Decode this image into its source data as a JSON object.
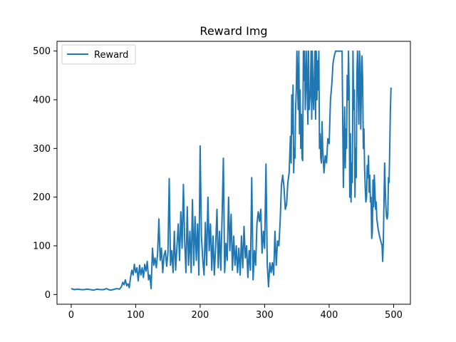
{
  "chart_data": {
    "type": "line",
    "title": "Reward Img",
    "xlabel": "",
    "ylabel": "",
    "xlim": [
      -22,
      526
    ],
    "ylim": [
      -20,
      520
    ],
    "xticks": [
      0,
      100,
      200,
      300,
      400,
      500
    ],
    "yticks": [
      0,
      100,
      200,
      300,
      400,
      500
    ],
    "grid": false,
    "legend": "upper-left",
    "colors": {
      "series": "#1f77b4"
    },
    "series": [
      {
        "name": "Reward",
        "points": [
          [
            0,
            12
          ],
          [
            5,
            10
          ],
          [
            10,
            11
          ],
          [
            15,
            10
          ],
          [
            20,
            10
          ],
          [
            25,
            11
          ],
          [
            30,
            10
          ],
          [
            35,
            9
          ],
          [
            40,
            11
          ],
          [
            45,
            10
          ],
          [
            50,
            10
          ],
          [
            55,
            12
          ],
          [
            60,
            9
          ],
          [
            65,
            10
          ],
          [
            70,
            12
          ],
          [
            75,
            11
          ],
          [
            78,
            16
          ],
          [
            80,
            25
          ],
          [
            82,
            20
          ],
          [
            84,
            30
          ],
          [
            86,
            18
          ],
          [
            88,
            22
          ],
          [
            90,
            14
          ],
          [
            92,
            35
          ],
          [
            94,
            50
          ],
          [
            96,
            40
          ],
          [
            98,
            62
          ],
          [
            100,
            45
          ],
          [
            102,
            55
          ],
          [
            104,
            28
          ],
          [
            106,
            60
          ],
          [
            108,
            40
          ],
          [
            110,
            55
          ],
          [
            112,
            35
          ],
          [
            114,
            62
          ],
          [
            116,
            48
          ],
          [
            118,
            68
          ],
          [
            120,
            30
          ],
          [
            122,
            40
          ],
          [
            124,
            12
          ],
          [
            126,
            95
          ],
          [
            128,
            60
          ],
          [
            130,
            75
          ],
          [
            132,
            55
          ],
          [
            134,
            85
          ],
          [
            136,
            155
          ],
          [
            138,
            70
          ],
          [
            140,
            95
          ],
          [
            142,
            45
          ],
          [
            144,
            80
          ],
          [
            146,
            90
          ],
          [
            148,
            58
          ],
          [
            150,
            85
          ],
          [
            152,
            238
          ],
          [
            154,
            60
          ],
          [
            156,
            90
          ],
          [
            158,
            45
          ],
          [
            160,
            130
          ],
          [
            162,
            50
          ],
          [
            164,
            100
          ],
          [
            166,
            145
          ],
          [
            168,
            70
          ],
          [
            170,
            170
          ],
          [
            172,
            95
          ],
          [
            174,
            226
          ],
          [
            176,
            110
          ],
          [
            178,
            45
          ],
          [
            180,
            180
          ],
          [
            182,
            60
          ],
          [
            184,
            130
          ],
          [
            186,
            45
          ],
          [
            188,
            195
          ],
          [
            190,
            60
          ],
          [
            192,
            160
          ],
          [
            194,
            70
          ],
          [
            196,
            145
          ],
          [
            198,
            40
          ],
          [
            200,
            305
          ],
          [
            202,
            120
          ],
          [
            204,
            70
          ],
          [
            206,
            40
          ],
          [
            208,
            148
          ],
          [
            210,
            60
          ],
          [
            212,
            200
          ],
          [
            214,
            90
          ],
          [
            216,
            145
          ],
          [
            218,
            50
          ],
          [
            220,
            120
          ],
          [
            222,
            40
          ],
          [
            224,
            100
          ],
          [
            226,
            175
          ],
          [
            228,
            55
          ],
          [
            230,
            130
          ],
          [
            232,
            50
          ],
          [
            234,
            160
          ],
          [
            236,
            280
          ],
          [
            238,
            45
          ],
          [
            240,
            105
          ],
          [
            242,
            70
          ],
          [
            244,
            200
          ],
          [
            246,
            90
          ],
          [
            248,
            165
          ],
          [
            250,
            50
          ],
          [
            252,
            120
          ],
          [
            254,
            60
          ],
          [
            256,
            100
          ],
          [
            258,
            45
          ],
          [
            260,
            95
          ],
          [
            262,
            40
          ],
          [
            264,
            120
          ],
          [
            266,
            55
          ],
          [
            268,
            140
          ],
          [
            270,
            75
          ],
          [
            272,
            100
          ],
          [
            274,
            35
          ],
          [
            276,
            90
          ],
          [
            278,
            50
          ],
          [
            280,
            240
          ],
          [
            282,
            30
          ],
          [
            284,
            90
          ],
          [
            286,
            60
          ],
          [
            288,
            145
          ],
          [
            290,
            170
          ],
          [
            292,
            150
          ],
          [
            294,
            175
          ],
          [
            296,
            85
          ],
          [
            298,
            130
          ],
          [
            300,
            95
          ],
          [
            302,
            268
          ],
          [
            304,
            60
          ],
          [
            306,
            16
          ],
          [
            308,
            65
          ],
          [
            310,
            45
          ],
          [
            312,
            65
          ],
          [
            314,
            40
          ],
          [
            316,
            130
          ],
          [
            318,
            60
          ],
          [
            320,
            110
          ],
          [
            322,
            100
          ],
          [
            324,
            150
          ],
          [
            326,
            225
          ],
          [
            328,
            245
          ],
          [
            330,
            220
          ],
          [
            332,
            175
          ],
          [
            334,
            185
          ],
          [
            336,
            230
          ],
          [
            338,
            250
          ],
          [
            340,
            325
          ],
          [
            341,
            270
          ],
          [
            342,
            410
          ],
          [
            343,
            330
          ],
          [
            344,
            430
          ],
          [
            345,
            250
          ],
          [
            346,
            300
          ],
          [
            347,
            280
          ],
          [
            348,
            380
          ],
          [
            349,
            420
          ],
          [
            350,
            500
          ],
          [
            351,
            440
          ],
          [
            352,
            380
          ],
          [
            353,
            500
          ],
          [
            354,
            330
          ],
          [
            355,
            420
          ],
          [
            356,
            300
          ],
          [
            357,
            370
          ],
          [
            358,
            280
          ],
          [
            359,
            275
          ],
          [
            360,
            500
          ],
          [
            361,
            440
          ],
          [
            362,
            500
          ],
          [
            363,
            380
          ],
          [
            364,
            440
          ],
          [
            365,
            500
          ],
          [
            366,
            420
          ],
          [
            367,
            350
          ],
          [
            368,
            500
          ],
          [
            369,
            380
          ],
          [
            370,
            400
          ],
          [
            371,
            420
          ],
          [
            372,
            500
          ],
          [
            373,
            360
          ],
          [
            374,
            500
          ],
          [
            375,
            420
          ],
          [
            376,
            380
          ],
          [
            377,
            440
          ],
          [
            378,
            500
          ],
          [
            379,
            360
          ],
          [
            380,
            500
          ],
          [
            381,
            400
          ],
          [
            382,
            480
          ],
          [
            383,
            420
          ],
          [
            384,
            500
          ],
          [
            385,
            300
          ],
          [
            386,
            330
          ],
          [
            387,
            280
          ],
          [
            388,
            270
          ],
          [
            389,
            355
          ],
          [
            390,
            300
          ],
          [
            392,
            250
          ],
          [
            394,
            285
          ],
          [
            396,
            270
          ],
          [
            398,
            320
          ],
          [
            400,
            310
          ],
          [
            402,
            400
          ],
          [
            404,
            430
          ],
          [
            406,
            475
          ],
          [
            408,
            490
          ],
          [
            410,
            500
          ],
          [
            412,
            500
          ],
          [
            414,
            500
          ],
          [
            416,
            500
          ],
          [
            418,
            500
          ],
          [
            420,
            500
          ],
          [
            422,
            220
          ],
          [
            424,
            385
          ],
          [
            425,
            260
          ],
          [
            426,
            340
          ],
          [
            427,
            300
          ],
          [
            428,
            450
          ],
          [
            429,
            400
          ],
          [
            430,
            500
          ],
          [
            431,
            420
          ],
          [
            432,
            200
          ],
          [
            433,
            330
          ],
          [
            434,
            190
          ],
          [
            435,
            270
          ],
          [
            436,
            230
          ],
          [
            437,
            500
          ],
          [
            438,
            380
          ],
          [
            439,
            420
          ],
          [
            440,
            200
          ],
          [
            441,
            300
          ],
          [
            442,
            240
          ],
          [
            443,
            455
          ],
          [
            444,
            500
          ],
          [
            445,
            420
          ],
          [
            446,
            350
          ],
          [
            447,
            500
          ],
          [
            448,
            480
          ],
          [
            449,
            340
          ],
          [
            450,
            420
          ],
          [
            451,
            490
          ],
          [
            452,
            440
          ],
          [
            453,
            300
          ],
          [
            454,
            340
          ],
          [
            455,
            260
          ],
          [
            456,
            220
          ],
          [
            457,
            190
          ],
          [
            458,
            200
          ],
          [
            459,
            265
          ],
          [
            460,
            240
          ],
          [
            461,
            285
          ],
          [
            462,
            210
          ],
          [
            463,
            245
          ],
          [
            464,
            190
          ],
          [
            465,
            200
          ],
          [
            466,
            115
          ],
          [
            467,
            130
          ],
          [
            468,
            235
          ],
          [
            469,
            180
          ],
          [
            470,
            245
          ],
          [
            471,
            215
          ],
          [
            472,
            175
          ],
          [
            473,
            190
          ],
          [
            474,
            155
          ],
          [
            476,
            135
          ],
          [
            478,
            120
          ],
          [
            480,
            110
          ],
          [
            482,
            100
          ],
          [
            483,
            68
          ],
          [
            484,
            110
          ],
          [
            485,
            185
          ],
          [
            486,
            270
          ],
          [
            487,
            220
          ],
          [
            488,
            180
          ],
          [
            489,
            160
          ],
          [
            490,
            155
          ],
          [
            491,
            165
          ],
          [
            492,
            240
          ],
          [
            493,
            230
          ],
          [
            494,
            300
          ],
          [
            495,
            380
          ],
          [
            496,
            425
          ]
        ]
      }
    ]
  }
}
